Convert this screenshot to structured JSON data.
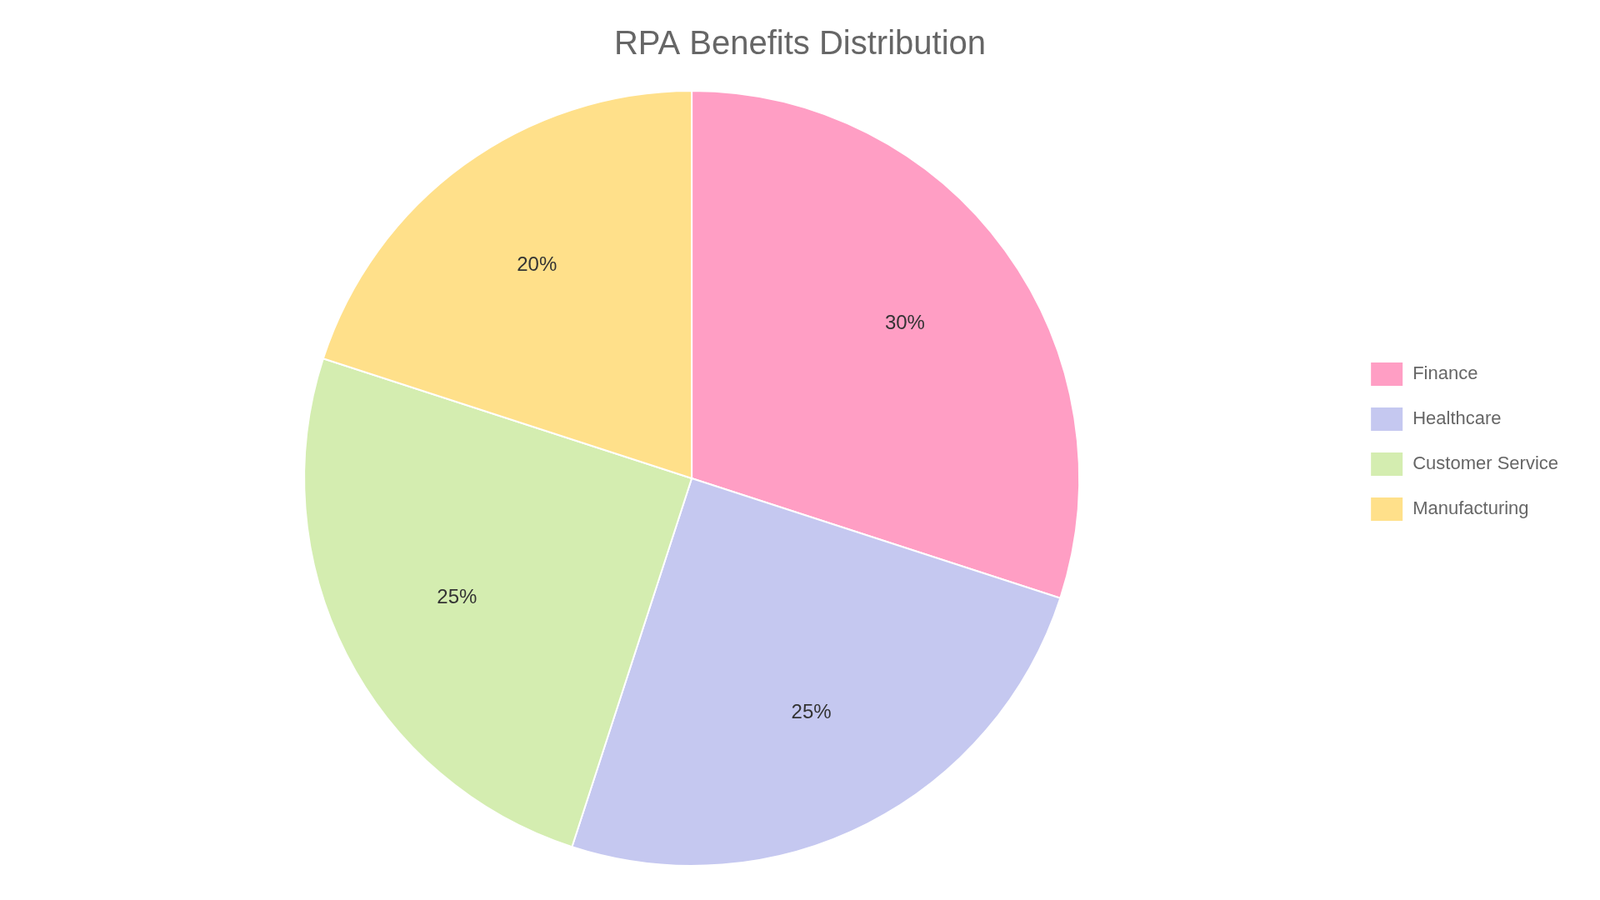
{
  "chart_data": {
    "type": "pie",
    "title": "RPA Benefits Distribution",
    "categories": [
      "Finance",
      "Healthcare",
      "Customer Service",
      "Manufacturing"
    ],
    "values": [
      30,
      25,
      25,
      20
    ],
    "value_labels": [
      "30%",
      "25%",
      "25%",
      "20%"
    ],
    "colors": [
      "#FF9EC4",
      "#C5C8F0",
      "#D4EDB0",
      "#FFE08A"
    ],
    "data_labels": true,
    "legend": "right"
  }
}
